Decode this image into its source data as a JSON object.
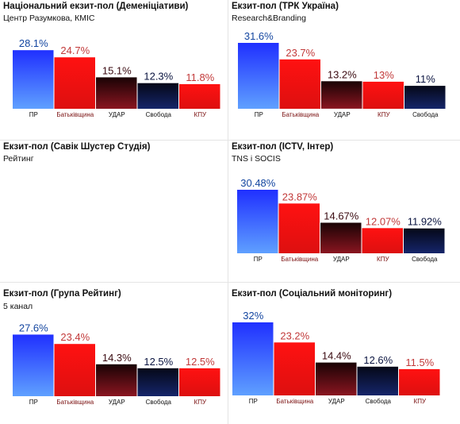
{
  "colors": {
    "blue": "#1a33ff",
    "red": "#ee1111",
    "maroon": "#5a0a10",
    "navy": "#0a1440",
    "label_blue": "#1446a0",
    "label_red": "#c23a3a",
    "label_dark": "#3a0a10",
    "label_navy": "#0a1440"
  },
  "chart_data": [
    {
      "type": "bar",
      "title": "Національний екзит-пол (Деменіціативи)",
      "subtitle": "Центр Разумкова, КМІС",
      "categories": [
        "ПР",
        "Батьківщина",
        "УДАР",
        "Свобода",
        "КПУ"
      ],
      "values": [
        28.1,
        24.7,
        15.1,
        12.3,
        11.8
      ],
      "value_labels": [
        "28.1%",
        "24.7%",
        "15.1%",
        "12.3%",
        "11.8%"
      ],
      "colors": [
        "blue",
        "red",
        "maroon",
        "navy",
        "red"
      ],
      "ylim": [
        0,
        32
      ]
    },
    {
      "type": "bar",
      "title": "Екзит-пол (ТРК Україна)",
      "subtitle": "Research&Branding",
      "categories": [
        "ПР",
        "Батьківщина",
        "УДАР",
        "КПУ",
        "Свобода"
      ],
      "values": [
        31.6,
        23.7,
        13.2,
        13,
        11
      ],
      "value_labels": [
        "31.6%",
        "23.7%",
        "13.2%",
        "13%",
        "11%"
      ],
      "colors": [
        "blue",
        "red",
        "maroon",
        "red",
        "navy"
      ],
      "ylim": [
        0,
        32
      ]
    },
    {
      "type": "bar",
      "title": "Екзит-пол (Савік Шустер Студія)",
      "subtitle": "Рейтинг",
      "categories": [],
      "values": [],
      "value_labels": [],
      "colors": [],
      "ylim": [
        0,
        32
      ]
    },
    {
      "type": "bar",
      "title": "Екзит-пол (ICTV, Інтер)",
      "subtitle": "TNS і SOCIS",
      "categories": [
        "ПР",
        "Батьківщина",
        "УДАР",
        "КПУ",
        "Свобода"
      ],
      "values": [
        30.48,
        23.87,
        14.67,
        12.07,
        11.92
      ],
      "value_labels": [
        "30.48%",
        "23.87%",
        "14.67%",
        "12.07%",
        "11.92%"
      ],
      "colors": [
        "blue",
        "red",
        "maroon",
        "red",
        "navy"
      ],
      "ylim": [
        0,
        32
      ]
    },
    {
      "type": "bar",
      "title": "Екзит-пол (Група Рейтинг)",
      "subtitle": "5 канал",
      "categories": [
        "ПР",
        "Батьківщина",
        "УДАР",
        "Свобода",
        "КПУ"
      ],
      "values": [
        27.6,
        23.4,
        14.3,
        12.5,
        12.5
      ],
      "value_labels": [
        "27.6%",
        "23.4%",
        "14.3%",
        "12.5%",
        "12.5%"
      ],
      "colors": [
        "blue",
        "red",
        "maroon",
        "navy",
        "red"
      ],
      "ylim": [
        0,
        32
      ]
    },
    {
      "type": "bar",
      "title": "Екзит-пол (Соціальний моніторинг)",
      "subtitle": "",
      "categories": [
        "ПР",
        "Батьківщина",
        "УДАР",
        "Свобода",
        "КПУ"
      ],
      "values": [
        32,
        23.2,
        14.4,
        12.6,
        11.5
      ],
      "value_labels": [
        "32%",
        "23.2%",
        "14.4%",
        "12.6%",
        "11.5%"
      ],
      "colors": [
        "blue",
        "red",
        "maroon",
        "navy",
        "red"
      ],
      "ylim": [
        0,
        32
      ]
    }
  ]
}
